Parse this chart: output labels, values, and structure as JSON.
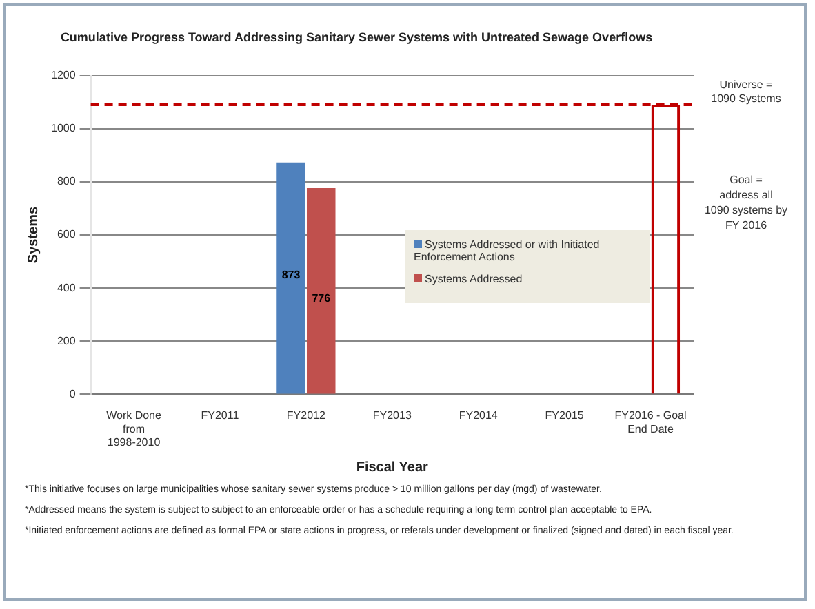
{
  "chart_data": {
    "type": "bar",
    "title": "Cumulative Progress Toward Addressing Sanitary Sewer Systems with Untreated Sewage Overflows",
    "xlabel": "Fiscal Year",
    "ylabel": "Systems",
    "categories": [
      "Work Done from 1998-2010",
      "FY2011",
      "FY2012",
      "FY2013",
      "FY2014",
      "FY2015",
      "FY2016 - Goal End Date"
    ],
    "series": [
      {
        "name": "Systems Addressed or with Initiated Enforcement Actions",
        "color": "#4f81bd",
        "values": [
          null,
          null,
          873,
          null,
          null,
          null,
          null
        ],
        "value_labels": [
          null,
          null,
          "873",
          null,
          null,
          null,
          null
        ]
      },
      {
        "name": "Systems Addressed",
        "color": "#c0504d",
        "values": [
          null,
          null,
          776,
          null,
          null,
          null,
          null
        ],
        "value_labels": [
          null,
          null,
          "776",
          null,
          null,
          null,
          null
        ]
      },
      {
        "color": "#c00000",
        "line_style": "dashed",
        "values": [
          null,
          null,
          null,
          null,
          null,
          null,
          1090
        ]
      }
    ],
    "ylim": [
      0,
      1200
    ],
    "yticks": [
      0,
      200,
      400,
      600,
      800,
      1000,
      1200
    ],
    "grid": "y",
    "legend": "right",
    "ref_lines": [
      {
        "axis": "y",
        "value": 1090,
        "label": "Universe = 1090 Systems",
        "color": "#c00000",
        "line_style": "dashed"
      }
    ],
    "annotations": [
      "Goal = address all 1090 systems by FY 2016",
      "*This initiative focuses on large municipalities whose sanitary sewer systems produce > 10 million gallons per day (mgd) of wastewater.",
      "*Addressed means the system is subject to subject to an enforceable order  or has a schedule requiring a long term control plan acceptable to EPA.",
      "*Initiated enforcement actions are defined as formal EPA or state actions in progress, or referals under development  or finalized  (signed and dated) in each fiscal year."
    ]
  }
}
